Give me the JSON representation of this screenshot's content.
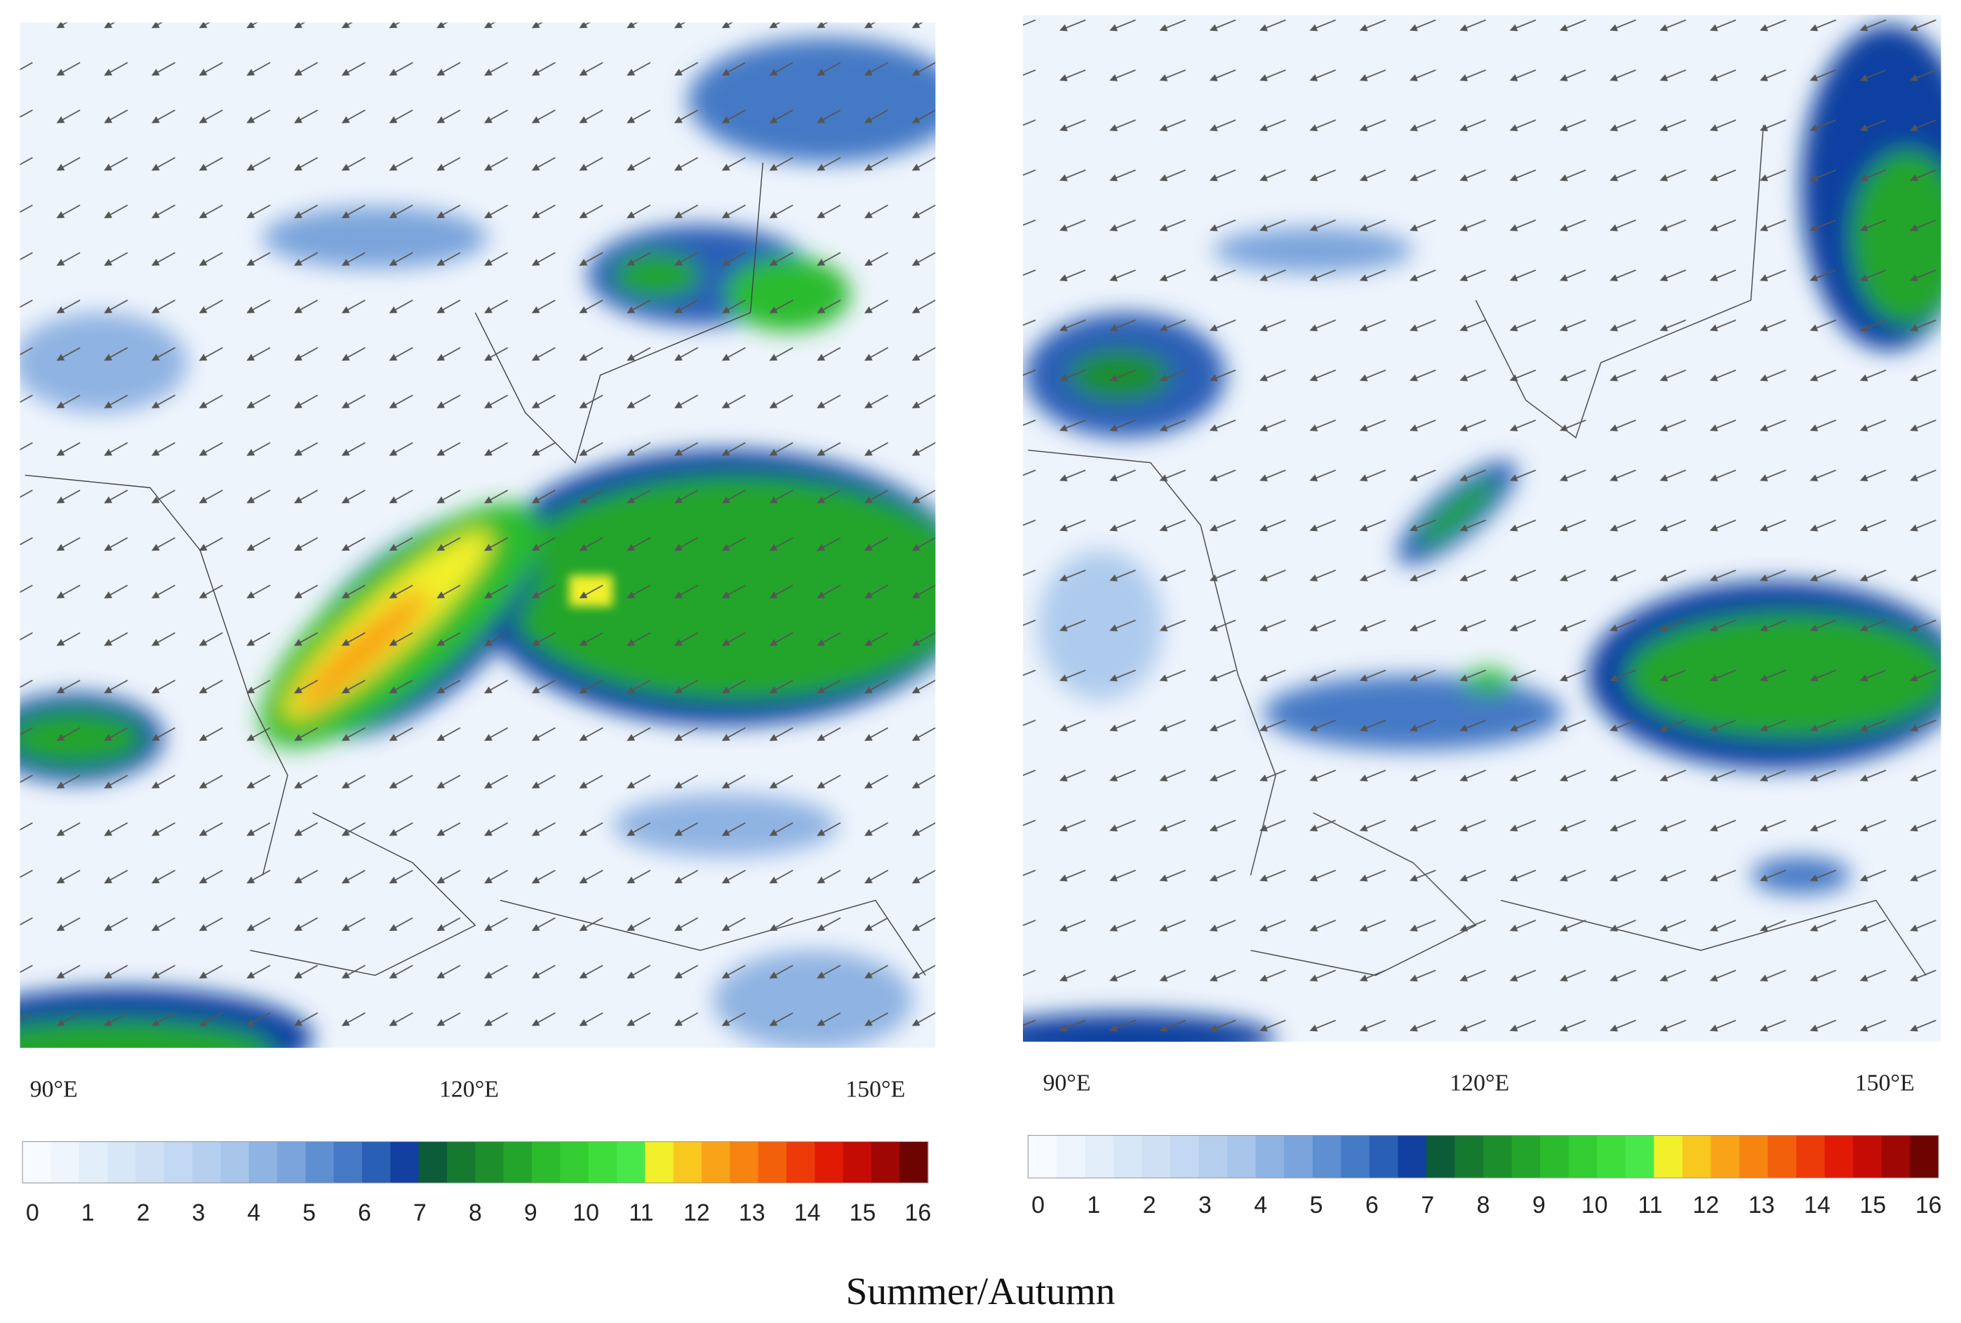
{
  "panels": [
    {
      "lon_labels": [
        "90°E",
        "120°E",
        "150°E"
      ],
      "colorbar_ticks": [
        0,
        1,
        2,
        3,
        4,
        5,
        6,
        7,
        8,
        9,
        10,
        11,
        12,
        13,
        14,
        15,
        16
      ]
    },
    {
      "lon_labels": [
        "90°E",
        "120°E",
        "150°E"
      ],
      "colorbar_ticks": [
        0,
        1,
        2,
        3,
        4,
        5,
        6,
        7,
        8,
        9,
        10,
        11,
        12,
        13,
        14,
        15,
        16
      ]
    }
  ],
  "colorbar_colors": [
    "#f7fbff",
    "#eef5fd",
    "#e3eefb",
    "#d8e7f8",
    "#cfe0f5",
    "#c3d8f2",
    "#b6cfee",
    "#a8c5ea",
    "#8fb3e2",
    "#7aa4db",
    "#5e8fd1",
    "#4479c5",
    "#2a5fb6",
    "#1140a0",
    "#0c5c3a",
    "#157a30",
    "#1c8f2c",
    "#23a52b",
    "#2bbb2d",
    "#34cc33",
    "#3edd3b",
    "#48e84a",
    "#f2f02a",
    "#f9c81f",
    "#f9a418",
    "#f78311",
    "#f2600c",
    "#ec3b08",
    "#e01a05",
    "#c40c04",
    "#9e0703",
    "#6e0401"
  ],
  "caption": "Summer/Autumn"
}
